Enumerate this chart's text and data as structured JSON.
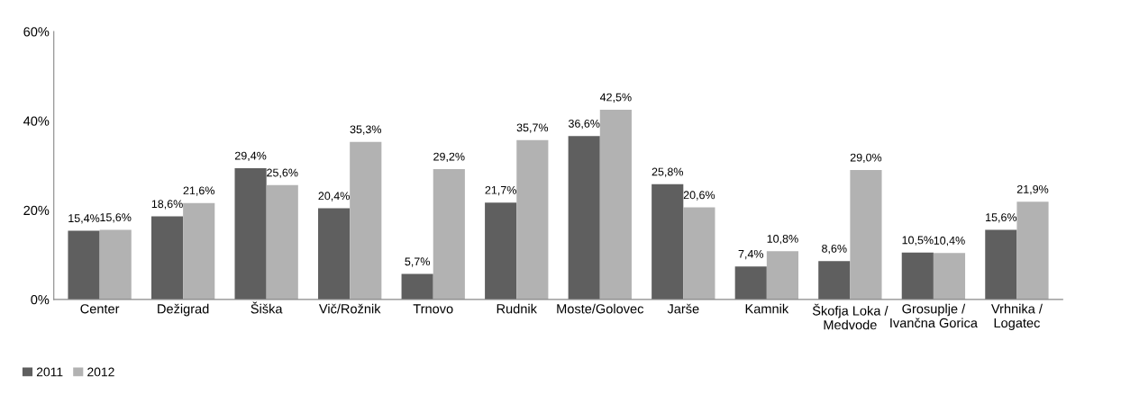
{
  "chart_data": {
    "type": "bar",
    "categories": [
      "Center",
      "Dežigrad",
      "Šiška",
      "Vič/Rožnik",
      "Trnovo",
      "Rudnik",
      "Moste/Golovec",
      "Jarše",
      "Kamnik",
      "Škofja Loka /\nMedvode",
      "Grosuplje /\nIvančna Gorica",
      "Vrhnika /\nLogatec"
    ],
    "series": [
      {
        "name": "2011",
        "color": "#5f5f5f",
        "values": [
          15.4,
          18.6,
          29.4,
          20.4,
          5.7,
          21.7,
          36.6,
          25.8,
          7.4,
          8.6,
          10.5,
          15.6
        ],
        "value_labels": [
          "15,4%",
          "18,6%",
          "29,4%",
          "20,4%",
          "5,7%",
          "21,7%",
          "36,6%",
          "25,8%",
          "7,4%",
          "8,6%",
          "10,5%",
          "15,6%"
        ]
      },
      {
        "name": "2012",
        "color": "#b2b2b2",
        "values": [
          15.6,
          21.6,
          25.6,
          35.3,
          29.2,
          35.7,
          42.5,
          20.6,
          10.8,
          29.0,
          10.4,
          21.9
        ],
        "value_labels": [
          "15,6%",
          "21,6%",
          "25,6%",
          "35,3%",
          "29,2%",
          "35,7%",
          "42,5%",
          "20,6%",
          "10,8%",
          "29,0%",
          "10,4%",
          "21,9%"
        ]
      }
    ],
    "ylim": [
      0,
      60
    ],
    "yticks": [
      {
        "value": 0,
        "label": "0%"
      },
      {
        "value": 20,
        "label": "20%"
      },
      {
        "value": 40,
        "label": "40%"
      },
      {
        "value": 60,
        "label": "60%"
      }
    ],
    "grid": false,
    "legend": "bottom left"
  }
}
